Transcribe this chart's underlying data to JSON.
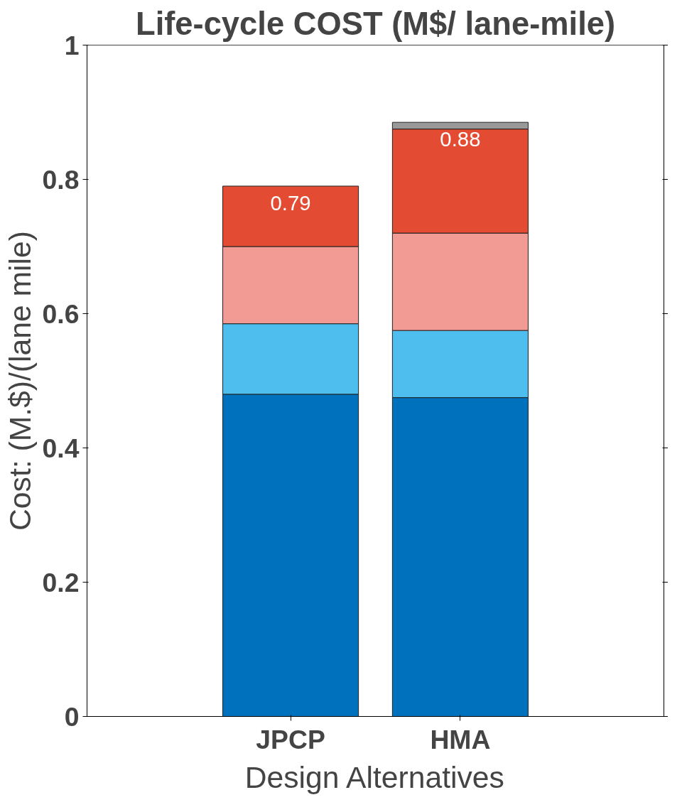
{
  "chart_data": {
    "type": "bar",
    "title": "Life-cycle COST (M$/ lane-mile)",
    "xlabel": "Design Alternatives",
    "ylabel": "Cost: (M.$)/(lane mile)",
    "categories": [
      "JPCP",
      "HMA"
    ],
    "stacked": true,
    "series": [
      {
        "color": "#0072bd",
        "values": [
          0.48,
          0.475
        ]
      },
      {
        "color": "#4dbeee",
        "values": [
          0.105,
          0.1
        ]
      },
      {
        "color": "#f29b94",
        "values": [
          0.115,
          0.145
        ]
      },
      {
        "color": "#e34b33",
        "values": [
          0.09,
          0.155
        ]
      },
      {
        "color": "#999999",
        "values": [
          null,
          0.01
        ]
      }
    ],
    "totals": [
      "0.79",
      "0.88"
    ],
    "ylim": [
      0,
      1
    ],
    "yticks": [
      0,
      0.2,
      0.4,
      0.6,
      0.8,
      1
    ],
    "grid": false
  }
}
